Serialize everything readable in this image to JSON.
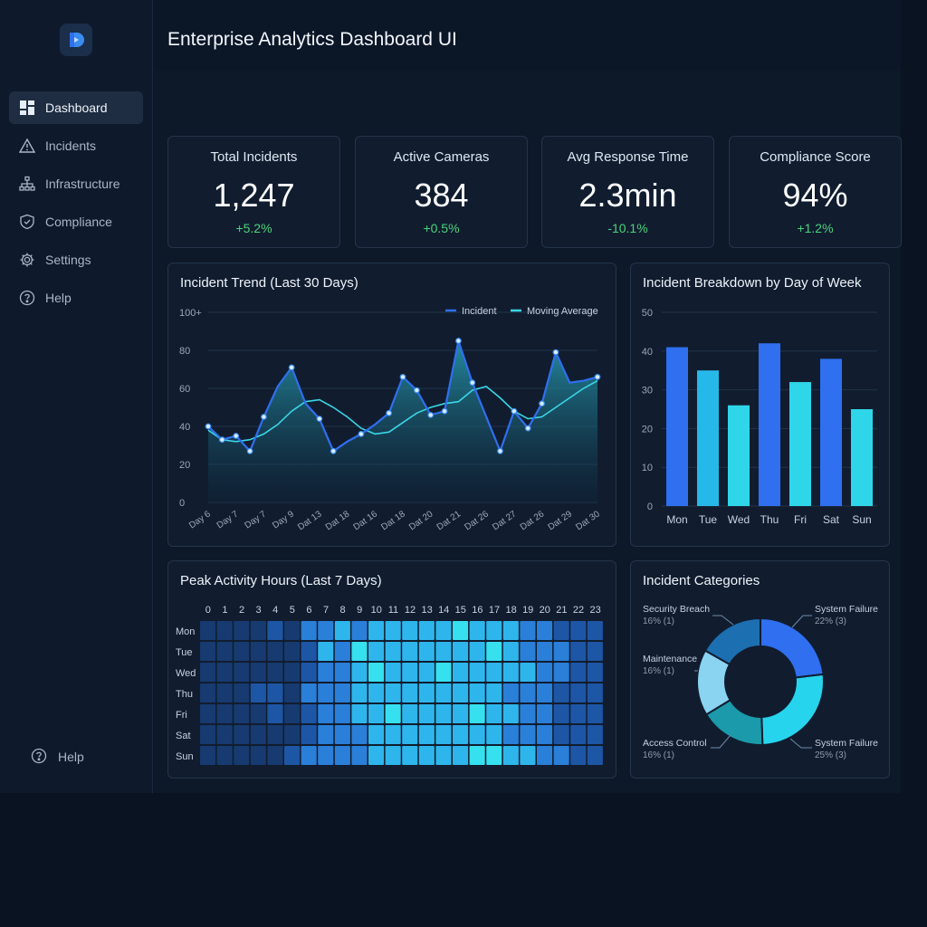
{
  "page": {
    "title": "Enterprise Analytics Dashboard UI"
  },
  "sidebar": {
    "items": [
      {
        "label": "Dashboard",
        "icon": "dashboard-icon",
        "active": true
      },
      {
        "label": "Incidents",
        "icon": "warning-icon"
      },
      {
        "label": "Infrastructure",
        "icon": "network-icon"
      },
      {
        "label": "Compliance",
        "icon": "shield-icon"
      },
      {
        "label": "Settings",
        "icon": "gear-icon"
      },
      {
        "label": "Help",
        "icon": "help-icon"
      }
    ],
    "footer_help": "Help"
  },
  "kpis": [
    {
      "label": "Total Incidents",
      "value": "1,247",
      "delta": "+5.2%"
    },
    {
      "label": "Active Cameras",
      "value": "384",
      "delta": "+0.5%"
    },
    {
      "label": "Avg Response Time",
      "value": "2.3min",
      "delta": "-10.1%"
    },
    {
      "label": "Compliance Score",
      "value": "94%",
      "delta": "+1.2%"
    }
  ],
  "colors": {
    "accent": "#2f6ff0",
    "cyan": "#3ad6e6",
    "positive": "#4ad37a",
    "card_bg": "#111d2f",
    "bg": "#0b1627"
  },
  "chart_data": [
    {
      "id": "trend",
      "type": "line",
      "title": "Incident Trend (Last 30 Days)",
      "legend_position": "top-right",
      "y_ticks": [
        "0",
        "20",
        "40",
        "60",
        "80",
        "100+"
      ],
      "ylim": [
        0,
        100
      ],
      "x_tick_labels": [
        "Day 6",
        "Day 7",
        "Day 7",
        "Day 9",
        "Dat 13",
        "Dat 18",
        "Dat 16",
        "Dat 18",
        "Dat 20",
        "Dat 21",
        "Dat 26",
        "Dat 27",
        "Dat 26",
        "Dat 29",
        "Dat 30"
      ],
      "series": [
        {
          "name": "Incident",
          "color": "#2f6ff0",
          "values": [
            40,
            33,
            35,
            27,
            45,
            61,
            71,
            52,
            44,
            27,
            32,
            36,
            41,
            47,
            66,
            59,
            46,
            48,
            85,
            63,
            45,
            27,
            48,
            39,
            52,
            79,
            63,
            64,
            66
          ]
        },
        {
          "name": "Moving Average",
          "color": "#3ad6e6",
          "values": [
            38,
            33,
            32,
            33,
            36,
            41,
            48,
            53,
            54,
            50,
            45,
            39,
            36,
            37,
            42,
            47,
            50,
            52,
            53,
            59,
            61,
            55,
            48,
            44,
            45,
            50,
            55,
            60,
            64
          ]
        }
      ]
    },
    {
      "id": "weekday",
      "type": "bar",
      "title": "Incident Breakdown by Day of Week",
      "categories": [
        "Mon",
        "Tue",
        "Wed",
        "Thu",
        "Fri",
        "Sat",
        "Sun"
      ],
      "values": [
        41,
        35,
        26,
        42,
        32,
        38,
        25
      ],
      "y_ticks": [
        "0",
        "10",
        "20",
        "30",
        "40",
        "50"
      ],
      "ylim": [
        0,
        50
      ],
      "bar_colors": [
        "#2f6ff0",
        "#27b8ea",
        "#2fd6ea",
        "#2f6ff0",
        "#2fd6ea",
        "#2f6ff0",
        "#2fd6ea"
      ]
    },
    {
      "id": "heatmap",
      "type": "heatmap",
      "title": "Peak Activity Hours (Last 7 Days)",
      "rows": [
        "Mon",
        "Tue",
        "Wed",
        "Thu",
        "Fri",
        "Sat",
        "Sun"
      ],
      "columns": [
        "0",
        "1",
        "2",
        "3",
        "4",
        "5",
        "6",
        "7",
        "8",
        "9",
        "10",
        "11",
        "12",
        "13",
        "14",
        "15",
        "16",
        "17",
        "18",
        "19",
        "20",
        "21",
        "22",
        "23"
      ],
      "values": [
        [
          1,
          1,
          1,
          1,
          2,
          1,
          3,
          3,
          4,
          3,
          4,
          4,
          4,
          4,
          4,
          5,
          4,
          4,
          4,
          3,
          3,
          2,
          2,
          2
        ],
        [
          1,
          1,
          1,
          1,
          1,
          1,
          2,
          4,
          3,
          5,
          4,
          4,
          4,
          4,
          4,
          4,
          4,
          5,
          4,
          3,
          3,
          3,
          2,
          2
        ],
        [
          1,
          1,
          1,
          1,
          1,
          1,
          2,
          3,
          3,
          4,
          5,
          4,
          4,
          4,
          5,
          4,
          4,
          4,
          4,
          4,
          3,
          3,
          2,
          2
        ],
        [
          1,
          1,
          1,
          2,
          2,
          1,
          3,
          3,
          3,
          4,
          4,
          4,
          4,
          4,
          4,
          4,
          4,
          4,
          3,
          3,
          3,
          2,
          2,
          2
        ],
        [
          1,
          1,
          1,
          1,
          2,
          1,
          2,
          3,
          3,
          4,
          4,
          5,
          4,
          4,
          4,
          4,
          5,
          4,
          4,
          3,
          3,
          2,
          2,
          2
        ],
        [
          1,
          1,
          1,
          1,
          1,
          1,
          2,
          3,
          3,
          3,
          4,
          4,
          4,
          4,
          4,
          4,
          4,
          4,
          3,
          3,
          3,
          2,
          2,
          2
        ],
        [
          1,
          1,
          1,
          1,
          1,
          2,
          3,
          3,
          3,
          3,
          4,
          4,
          4,
          4,
          4,
          4,
          5,
          5,
          4,
          4,
          3,
          3,
          2,
          2
        ]
      ],
      "scale": [
        "#173a70",
        "#1e56a6",
        "#2a7fd8",
        "#2eb6ec",
        "#36e0ee"
      ]
    },
    {
      "id": "categories",
      "type": "pie",
      "title": "Incident Categories",
      "slices": [
        {
          "name": "System Failure",
          "pct_label": "22% (3)",
          "value": 22,
          "color": "#2f6ff0"
        },
        {
          "name": "System Failure",
          "pct_label": "25% (3)",
          "value": 25,
          "color": "#27d4ee"
        },
        {
          "name": "Access Control",
          "pct_label": "16% (1)",
          "value": 16,
          "color": "#1a9aab"
        },
        {
          "name": "Maintenance",
          "pct_label": "16% (1)",
          "value": 16,
          "color": "#8ad4f2"
        },
        {
          "name": "Security Breach",
          "pct_label": "16% (1)",
          "value": 16,
          "color": "#1c6fb0"
        }
      ]
    }
  ]
}
